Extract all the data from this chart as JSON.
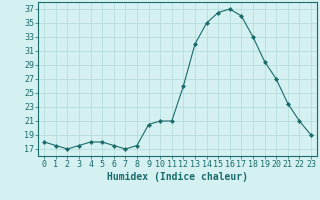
{
  "x": [
    0,
    1,
    2,
    3,
    4,
    5,
    6,
    7,
    8,
    9,
    10,
    11,
    12,
    13,
    14,
    15,
    16,
    17,
    18,
    19,
    20,
    21,
    22,
    23
  ],
  "y": [
    18,
    17.5,
    17,
    17.5,
    18,
    18,
    17.5,
    17,
    17.5,
    20.5,
    21,
    21,
    26,
    32,
    35,
    36.5,
    37,
    36,
    33,
    29.5,
    27,
    23.5,
    21,
    19
  ],
  "line_color": "#1a6b6b",
  "marker": "D",
  "marker_size": 2,
  "background_color": "#d4f0f0",
  "grid_color": "#b0d8d8",
  "xlabel": "Humidex (Indice chaleur)",
  "ylabel": "",
  "ylim": [
    16,
    38
  ],
  "yticks": [
    17,
    19,
    21,
    23,
    25,
    27,
    29,
    31,
    33,
    35,
    37
  ],
  "xlim": [
    -0.5,
    23.5
  ],
  "tick_color": "#1a6b6b",
  "font_size": 6
}
